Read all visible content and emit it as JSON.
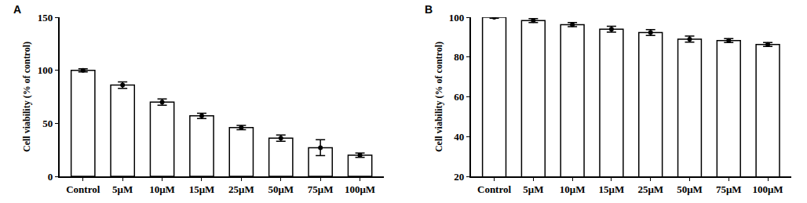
{
  "chart_data": [
    {
      "type": "bar",
      "title": "A",
      "y_label": "Cell viability (% of control)",
      "categories": [
        "Control",
        "5μM",
        "10μM",
        "15μM",
        "25μM",
        "50μM",
        "75μM",
        "100μM"
      ],
      "values": [
        100,
        86,
        70,
        57,
        46,
        36,
        27,
        20
      ],
      "errors": [
        1.5,
        3,
        3,
        2.5,
        2,
        3,
        7.5,
        2
      ],
      "color": "#ffffff",
      "marker": "circle",
      "ylim": [
        0,
        150
      ],
      "yticks": [
        0,
        50,
        100,
        150
      ],
      "grid": false
    },
    {
      "type": "bar",
      "title": "B",
      "y_label": "Cell viability (% of control)",
      "categories": [
        "Control",
        "5μM",
        "10μM",
        "15μM",
        "25μM",
        "50μM",
        "75μM",
        "100μM"
      ],
      "values": [
        100,
        98.3,
        96.3,
        94,
        92.3,
        89,
        88.3,
        86.3
      ],
      "errors": [
        0.5,
        1,
        1,
        1.5,
        1.5,
        1.5,
        1,
        1
      ],
      "color": "#ffffff",
      "marker": "circle",
      "ylim": [
        20,
        100
      ],
      "yticks": [
        20,
        40,
        60,
        80,
        100
      ],
      "grid": false
    }
  ]
}
